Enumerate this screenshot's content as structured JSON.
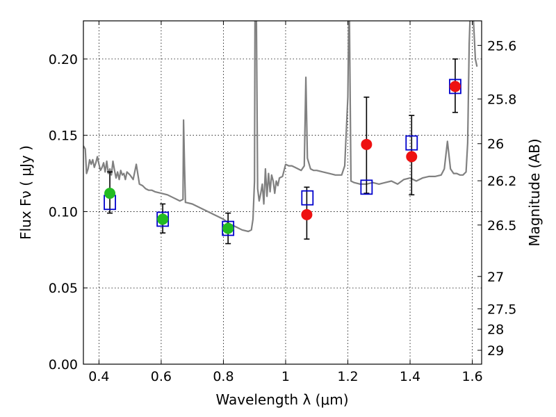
{
  "chart_data": {
    "type": "scatter",
    "xlabel": "Wavelength  λ (μm)",
    "ylabel": "Flux  Fν  ( μJy )",
    "y2label": "Magnitude (AB)",
    "xlim": [
      0.35,
      1.63
    ],
    "ylim": [
      0.0,
      0.225
    ],
    "grid": true,
    "x_ticks": [
      0.4,
      0.6,
      0.8,
      1.0,
      1.2,
      1.4,
      1.6
    ],
    "x_tick_labels": [
      "0.4",
      "0.6",
      "0.8",
      "1",
      "1.2",
      "1.4",
      "1.6"
    ],
    "y_ticks": [
      0.0,
      0.05,
      0.1,
      0.15,
      0.2
    ],
    "y_tick_labels": [
      "0.00",
      "0.05",
      "0.10",
      "0.15",
      "0.20"
    ],
    "right_axis_ticks": [
      {
        "label": "25.6",
        "flux": 0.2089
      },
      {
        "label": "25.8",
        "flux": 0.1738
      },
      {
        "label": "26",
        "flux": 0.1445
      },
      {
        "label": "26.2",
        "flux": 0.1202
      },
      {
        "label": "26.5",
        "flux": 0.0912
      },
      {
        "label": "27",
        "flux": 0.0575
      },
      {
        "label": "27.5",
        "flux": 0.0363
      },
      {
        "label": "28",
        "flux": 0.0229
      },
      {
        "label": "29",
        "flux": 0.0091
      }
    ],
    "series": [
      {
        "kind": "spectrum",
        "color": "#808080",
        "x": [
          0.35,
          0.356,
          0.36,
          0.365,
          0.37,
          0.375,
          0.38,
          0.385,
          0.39,
          0.395,
          0.4,
          0.405,
          0.41,
          0.415,
          0.42,
          0.425,
          0.43,
          0.435,
          0.44,
          0.445,
          0.45,
          0.455,
          0.46,
          0.465,
          0.47,
          0.475,
          0.48,
          0.485,
          0.49,
          0.5,
          0.51,
          0.52,
          0.53,
          0.54,
          0.55,
          0.56,
          0.57,
          0.58,
          0.6,
          0.62,
          0.64,
          0.65,
          0.66,
          0.67,
          0.672,
          0.675,
          0.678,
          0.68,
          0.7,
          0.72,
          0.74,
          0.76,
          0.78,
          0.8,
          0.82,
          0.84,
          0.86,
          0.88,
          0.89,
          0.895,
          0.9,
          0.902,
          0.905,
          0.91,
          0.915,
          0.92,
          0.925,
          0.93,
          0.935,
          0.94,
          0.945,
          0.95,
          0.955,
          0.96,
          0.965,
          0.97,
          0.975,
          0.98,
          0.99,
          1.0,
          1.01,
          1.02,
          1.03,
          1.04,
          1.05,
          1.06,
          1.065,
          1.07,
          1.08,
          1.09,
          1.1,
          1.12,
          1.14,
          1.16,
          1.18,
          1.19,
          1.2,
          1.203,
          1.205,
          1.21,
          1.22,
          1.24,
          1.26,
          1.28,
          1.3,
          1.32,
          1.34,
          1.36,
          1.38,
          1.4,
          1.42,
          1.44,
          1.46,
          1.48,
          1.5,
          1.51,
          1.52,
          1.53,
          1.54,
          1.55,
          1.56,
          1.57,
          1.58,
          1.585,
          1.59,
          1.595,
          1.6,
          1.605,
          1.61,
          1.615
        ],
        "y": [
          0.143,
          0.141,
          0.125,
          0.128,
          0.134,
          0.131,
          0.134,
          0.129,
          0.132,
          0.136,
          0.131,
          0.127,
          0.129,
          0.132,
          0.126,
          0.133,
          0.125,
          0.128,
          0.124,
          0.133,
          0.127,
          0.122,
          0.126,
          0.121,
          0.127,
          0.124,
          0.125,
          0.121,
          0.126,
          0.124,
          0.121,
          0.131,
          0.118,
          0.117,
          0.115,
          0.114,
          0.114,
          0.113,
          0.112,
          0.111,
          0.109,
          0.108,
          0.107,
          0.108,
          0.16,
          0.13,
          0.106,
          0.106,
          0.105,
          0.103,
          0.101,
          0.099,
          0.097,
          0.095,
          0.092,
          0.09,
          0.088,
          0.087,
          0.088,
          0.095,
          0.12,
          0.26,
          0.26,
          0.115,
          0.107,
          0.112,
          0.118,
          0.105,
          0.128,
          0.11,
          0.125,
          0.113,
          0.124,
          0.12,
          0.112,
          0.12,
          0.117,
          0.122,
          0.123,
          0.131,
          0.13,
          0.13,
          0.129,
          0.128,
          0.127,
          0.13,
          0.188,
          0.135,
          0.128,
          0.127,
          0.127,
          0.126,
          0.125,
          0.124,
          0.124,
          0.13,
          0.175,
          0.23,
          0.23,
          0.12,
          0.119,
          0.118,
          0.118,
          0.119,
          0.118,
          0.119,
          0.12,
          0.118,
          0.121,
          0.122,
          0.12,
          0.122,
          0.123,
          0.123,
          0.124,
          0.128,
          0.146,
          0.128,
          0.125,
          0.125,
          0.124,
          0.124,
          0.126,
          0.145,
          0.21,
          0.24,
          0.24,
          0.22,
          0.2,
          0.195
        ]
      },
      {
        "kind": "model",
        "marker": "open-square",
        "color": "#0000cc",
        "x": [
          0.435,
          0.605,
          0.815,
          1.07,
          1.26,
          1.405,
          1.545
        ],
        "y": [
          0.106,
          0.095,
          0.089,
          0.109,
          0.116,
          0.145,
          0.182
        ]
      },
      {
        "kind": "observed",
        "marker": "circle",
        "color": "#22bb22",
        "x": [
          0.435,
          0.605,
          0.815
        ],
        "y": [
          0.112,
          0.095,
          0.089
        ],
        "err_low": [
          0.013,
          0.009,
          0.01
        ],
        "err_high": [
          0.014,
          0.01,
          0.01
        ]
      },
      {
        "kind": "observed",
        "marker": "circle",
        "color": "#ee1111",
        "x": [
          1.068,
          1.26,
          1.405,
          1.545
        ],
        "y": [
          0.098,
          0.144,
          0.136,
          0.182
        ],
        "err_low": [
          0.016,
          0.032,
          0.025,
          0.017
        ],
        "err_high": [
          0.018,
          0.031,
          0.027,
          0.018
        ]
      }
    ]
  }
}
